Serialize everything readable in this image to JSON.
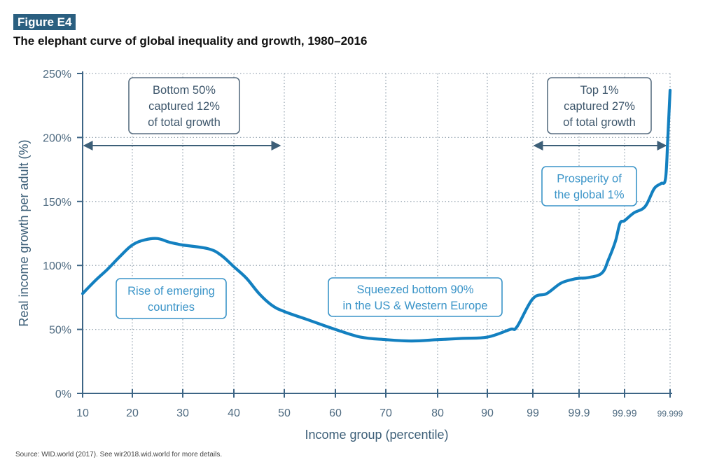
{
  "figure": {
    "badge": "Figure E4",
    "title": "The elephant curve of global inequality and growth, 1980–2016",
    "source": "Source: WID.world (2017). See wir2018.wid.world for more details."
  },
  "colors": {
    "badge_bg": "#2a5f80",
    "axis": "#3d6585",
    "curve": "#1380c0",
    "annotation_light": "#3a94c8",
    "annotation_dark": "#5a6f82",
    "grid": "#9aa8b4"
  },
  "chart_data": {
    "type": "line",
    "title": "The elephant curve of global inequality and growth, 1980–2016",
    "xlabel": "Income group (percentile)",
    "ylabel": "Real income growth per adult (%)",
    "x_scale": "categorical-percentile (equal spacing per tick, last five ticks compressed)",
    "x_ticks": [
      "10",
      "20",
      "30",
      "40",
      "50",
      "60",
      "70",
      "80",
      "90",
      "99",
      "99.9",
      "99.99",
      "99.999"
    ],
    "y_ticks": [
      "0%",
      "50%",
      "100%",
      "150%",
      "200%",
      "250%"
    ],
    "ylim": [
      0,
      250
    ],
    "grid": true,
    "series": [
      {
        "name": "Real income growth per adult",
        "points_note": "x expressed as tick position index (0 = '10', 12 = '99.999'), y in %",
        "points": [
          [
            0.0,
            78
          ],
          [
            0.25,
            88
          ],
          [
            0.5,
            97
          ],
          [
            0.75,
            107
          ],
          [
            1.0,
            116
          ],
          [
            1.25,
            120
          ],
          [
            1.5,
            121
          ],
          [
            1.75,
            118
          ],
          [
            2.0,
            116
          ],
          [
            2.5,
            113
          ],
          [
            2.75,
            108
          ],
          [
            3.0,
            99
          ],
          [
            3.25,
            90
          ],
          [
            3.5,
            78
          ],
          [
            3.75,
            69
          ],
          [
            4.0,
            64
          ],
          [
            4.5,
            57
          ],
          [
            5.0,
            50
          ],
          [
            5.5,
            44
          ],
          [
            6.0,
            42
          ],
          [
            6.5,
            41
          ],
          [
            7.0,
            42
          ],
          [
            7.5,
            43
          ],
          [
            8.0,
            44
          ],
          [
            8.5,
            50
          ],
          [
            8.65,
            52
          ],
          [
            9.0,
            74
          ],
          [
            9.3,
            78
          ],
          [
            9.6,
            86
          ],
          [
            9.85,
            89
          ],
          [
            10.0,
            90
          ],
          [
            10.2,
            90.5
          ],
          [
            10.5,
            94
          ],
          [
            10.65,
            105
          ],
          [
            10.8,
            119
          ],
          [
            10.9,
            133
          ],
          [
            11.0,
            135
          ],
          [
            11.2,
            141
          ],
          [
            11.45,
            146
          ],
          [
            11.65,
            160
          ],
          [
            11.8,
            164
          ],
          [
            11.9,
            168
          ],
          [
            11.95,
            200
          ],
          [
            12.0,
            237
          ]
        ]
      }
    ],
    "annotations": [
      {
        "id": "bottom50",
        "lines": [
          "Bottom 50%",
          "captured 12%",
          "of total growth"
        ],
        "style": "dark",
        "arrow_range": [
          "10",
          "50"
        ]
      },
      {
        "id": "top1",
        "lines": [
          "Top 1%",
          "captured 27%",
          "of total growth"
        ],
        "style": "dark",
        "arrow_range": [
          "99",
          "99.999"
        ]
      },
      {
        "id": "emerging",
        "lines": [
          "Rise of emerging",
          "countries"
        ],
        "style": "light"
      },
      {
        "id": "squeezed",
        "lines": [
          "Squeezed bottom 90%",
          "in the US & Western Europe"
        ],
        "style": "light"
      },
      {
        "id": "prosperity",
        "lines": [
          "Prosperity of",
          "the global 1%"
        ],
        "style": "light"
      }
    ]
  }
}
